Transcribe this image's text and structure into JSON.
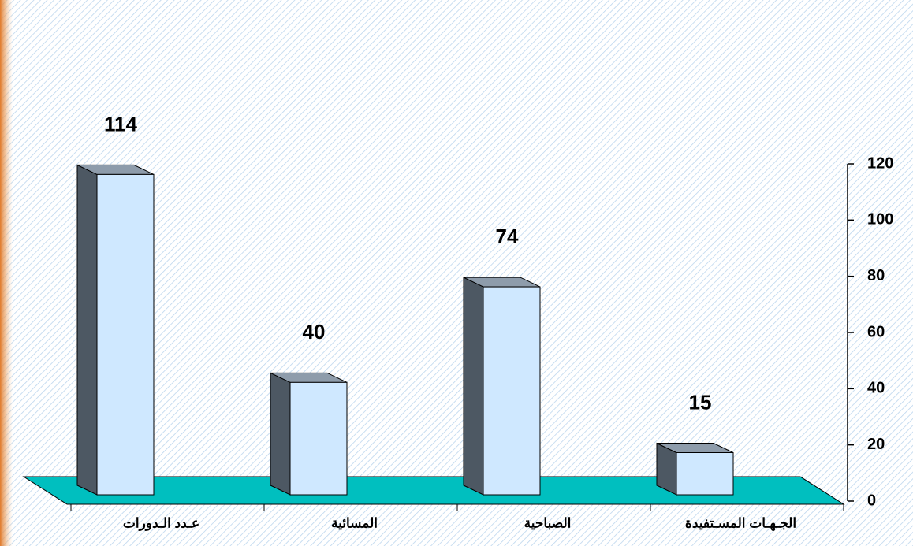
{
  "chart_data": {
    "type": "bar",
    "categories": [
      "عـدد الـدورات",
      "المسائية",
      "الصباحية",
      "الجـهـات المسـتفيدة"
    ],
    "values": [
      114,
      40,
      74,
      15
    ],
    "color": "#cfe8ff",
    "ylim": [
      0,
      120
    ],
    "yticks": [
      0,
      20,
      40,
      60,
      80,
      100,
      120
    ]
  }
}
